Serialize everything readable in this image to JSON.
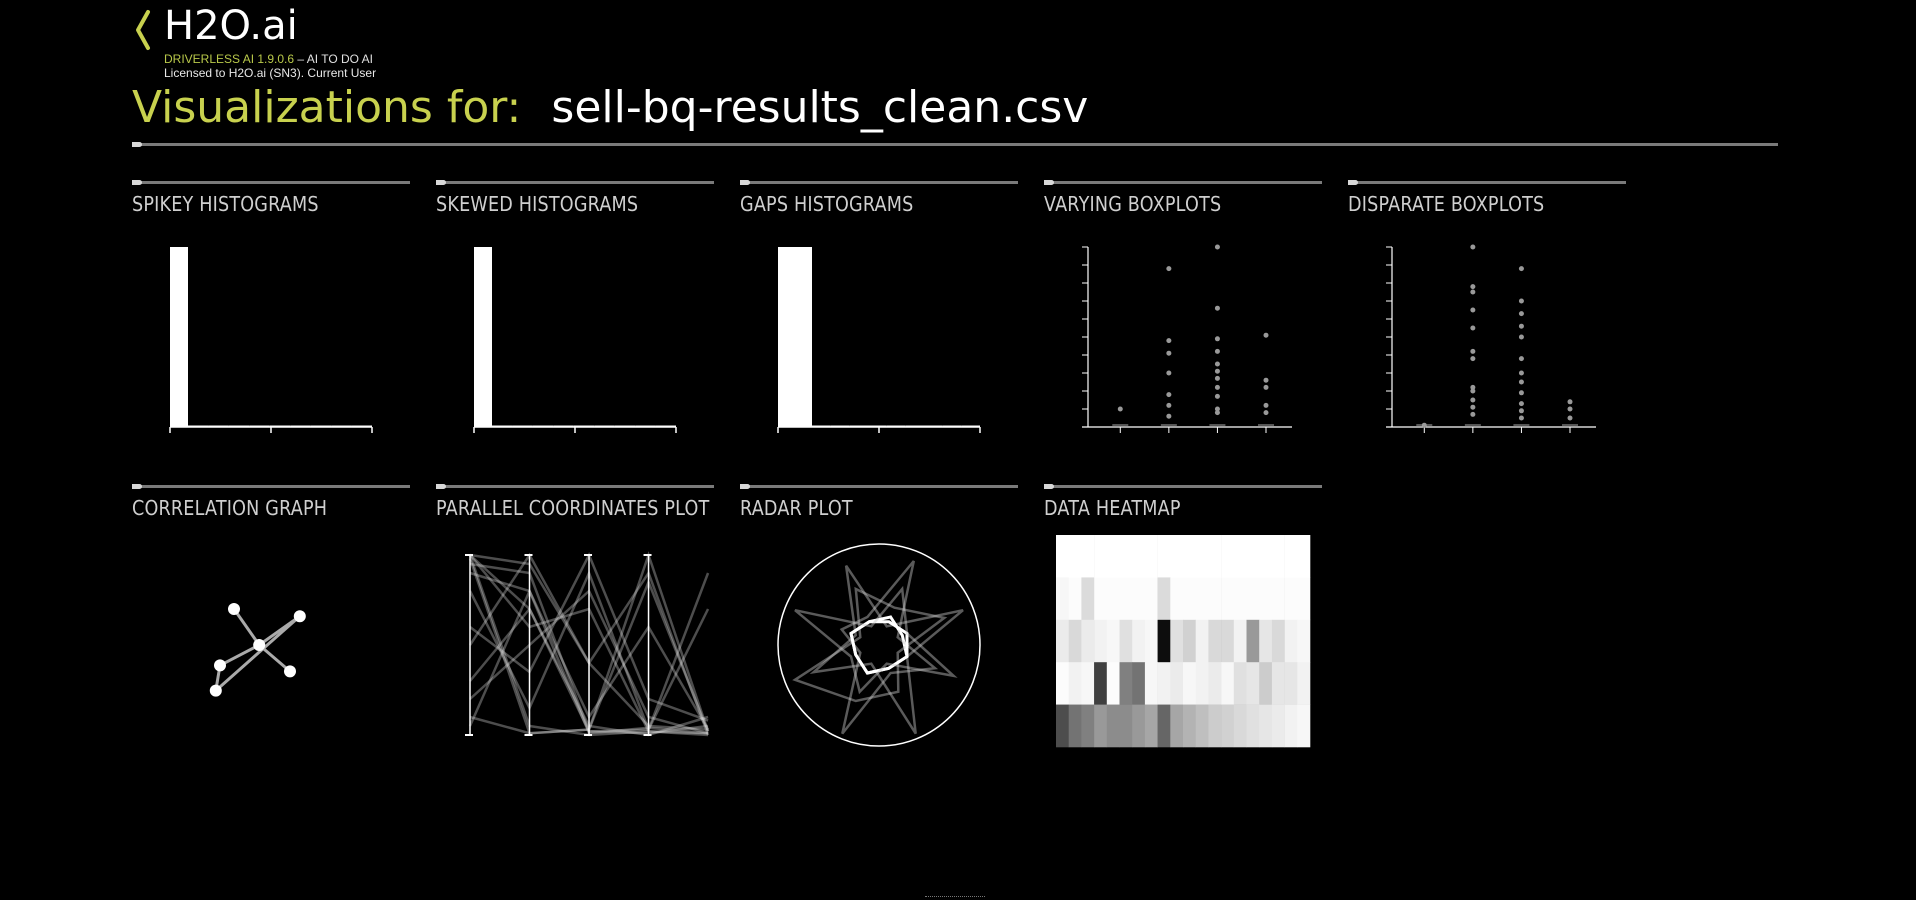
{
  "header": {
    "brand": "H2O.ai",
    "version_label": "DRIVERLESS AI 1.9.0.6",
    "tagline": "– AI TO DO AI",
    "license": "Licensed to H2O.ai (SN3). Current User",
    "visualizations_label": "Visualizations for:",
    "dataset_name": "sell-bq-results_clean.csv"
  },
  "colors": {
    "accent": "#c8d14e",
    "background": "#000000",
    "rule": "#7a7a7a"
  },
  "icons": {
    "back": "chevron-left-icon"
  },
  "cards": [
    {
      "id": "spikey",
      "title": "SPIKEY HISTOGRAMS"
    },
    {
      "id": "skewed",
      "title": "SKEWED HISTOGRAMS"
    },
    {
      "id": "gaps",
      "title": "GAPS HISTOGRAMS"
    },
    {
      "id": "varying",
      "title": "VARYING BOXPLOTS"
    },
    {
      "id": "disparate",
      "title": "DISPARATE BOXPLOTS"
    },
    {
      "id": "correlation",
      "title": "CORRELATION GRAPH"
    },
    {
      "id": "parallel",
      "title": "PARALLEL COORDINATES PLOT"
    },
    {
      "id": "radar",
      "title": "RADAR PLOT"
    },
    {
      "id": "heatmap",
      "title": "DATA HEATMAP"
    }
  ],
  "chart_data": [
    {
      "type": "bar",
      "name": "spikey",
      "values": [
        100,
        0.6,
        0.5,
        0.4,
        0.4,
        0.3,
        0.3,
        0.3,
        0.2,
        0.2
      ]
    },
    {
      "type": "bar",
      "name": "skewed",
      "values": [
        100,
        0.7,
        0.6,
        0.5,
        0.5,
        0.4,
        0.4,
        0.3,
        0.3,
        0.3
      ]
    },
    {
      "type": "bar",
      "name": "gaps",
      "values": [
        100,
        0.7,
        0.6,
        0.5,
        0.5,
        0.4,
        0.4,
        0.3,
        0.3,
        0.3
      ]
    },
    {
      "type": "scatter",
      "name": "varying",
      "groups": [
        {
          "x": 1,
          "points": [
            0.1
          ]
        },
        {
          "x": 2,
          "points": [
            0.88,
            0.48,
            0.41,
            0.3,
            0.18,
            0.12,
            0.06
          ]
        },
        {
          "x": 3,
          "points": [
            1.0,
            0.66,
            0.49,
            0.42,
            0.35,
            0.31,
            0.27,
            0.22,
            0.17,
            0.1,
            0.08
          ]
        },
        {
          "x": 4,
          "points": [
            0.51,
            0.26,
            0.22,
            0.12,
            0.08
          ]
        }
      ],
      "ylim": [
        0,
        1
      ]
    },
    {
      "type": "scatter",
      "name": "disparate",
      "groups": [
        {
          "x": 1,
          "points": [
            0.01
          ]
        },
        {
          "x": 2,
          "points": [
            1.0,
            0.78,
            0.75,
            0.65,
            0.55,
            0.42,
            0.38,
            0.22,
            0.2,
            0.15,
            0.11,
            0.07
          ]
        },
        {
          "x": 3,
          "points": [
            0.88,
            0.7,
            0.63,
            0.56,
            0.5,
            0.38,
            0.3,
            0.25,
            0.19,
            0.13,
            0.09,
            0.05
          ]
        },
        {
          "x": 4,
          "points": [
            0.14,
            0.1,
            0.05
          ]
        }
      ],
      "ylim": [
        0,
        1
      ]
    },
    {
      "type": "graph",
      "name": "correlation",
      "nodes": [
        {
          "id": 0,
          "x": 0.3,
          "y": 0.2
        },
        {
          "id": 1,
          "x": 0.77,
          "y": 0.26
        },
        {
          "id": 2,
          "x": 0.48,
          "y": 0.5
        },
        {
          "id": 3,
          "x": 0.2,
          "y": 0.67
        },
        {
          "id": 4,
          "x": 0.7,
          "y": 0.72
        },
        {
          "id": 5,
          "x": 0.17,
          "y": 0.88
        }
      ],
      "edges": [
        [
          0,
          2
        ],
        [
          2,
          1
        ],
        [
          2,
          3
        ],
        [
          2,
          4
        ],
        [
          3,
          5
        ],
        [
          5,
          1
        ]
      ]
    },
    {
      "type": "parallel",
      "name": "parallel",
      "axes": 5,
      "lines": [
        [
          0.0,
          0.3,
          0.95,
          1.0,
          0.9
        ],
        [
          0.0,
          0.95,
          1.0,
          0.98,
          1.0
        ],
        [
          0.05,
          0.1,
          0.98,
          0.99,
          0.95
        ],
        [
          0.5,
          0.0,
          0.6,
          0.95,
          0.97
        ],
        [
          0.8,
          0.5,
          0.2,
          0.9,
          0.99
        ],
        [
          0.95,
          0.2,
          0.9,
          0.4,
          0.97
        ],
        [
          0.2,
          0.85,
          0.1,
          0.97,
          0.3
        ],
        [
          0.0,
          0.05,
          0.6,
          0.1,
          1.0
        ],
        [
          0.9,
          0.99,
          0.97,
          0.15,
          0.98
        ],
        [
          0.4,
          0.65,
          0.0,
          0.8,
          0.92
        ],
        [
          0.1,
          0.2,
          0.99,
          0.96,
          0.99
        ],
        [
          0.02,
          0.99,
          0.97,
          0.0,
          0.98
        ],
        [
          0.7,
          0.3,
          0.98,
          0.97,
          0.1
        ],
        [
          0.0,
          0.4,
          0.3,
          0.98,
          0.99
        ]
      ]
    },
    {
      "type": "radar",
      "name": "radar",
      "spokes": 8,
      "series": [
        [
          0.2,
          0.9,
          0.3,
          0.95,
          0.2,
          0.7,
          0.25,
          0.85
        ],
        [
          0.3,
          0.25,
          0.3,
          0.25,
          0.3,
          0.25,
          0.3,
          0.25
        ],
        [
          0.9,
          0.2,
          0.6,
          0.3,
          0.95,
          0.2,
          0.4,
          0.3
        ],
        [
          0.4,
          0.7,
          0.2,
          0.5,
          0.6,
          0.9,
          0.2,
          0.6
        ],
        [
          0.25,
          0.3,
          0.3,
          0.25,
          0.3,
          0.25,
          0.3,
          0.25
        ],
        [
          0.6,
          0.3,
          0.8,
          0.2,
          0.5,
          0.3,
          0.9,
          0.2
        ]
      ]
    },
    {
      "type": "heatmap",
      "name": "heatmap",
      "rows": [
        [
          1,
          1,
          1,
          1,
          1,
          1,
          1,
          1,
          1,
          1,
          1,
          1,
          1,
          1,
          1,
          1,
          1,
          1,
          1,
          1
        ],
        [
          0.97,
          0.99,
          0.86,
          0.99,
          0.99,
          0.99,
          0.99,
          0.99,
          0.86,
          0.99,
          0.99,
          0.99,
          0.99,
          0.99,
          0.99,
          0.99,
          0.99,
          0.99,
          0.99,
          0.99
        ],
        [
          0.92,
          0.85,
          0.92,
          0.95,
          0.97,
          0.88,
          0.95,
          0.97,
          0.05,
          0.88,
          0.82,
          0.95,
          0.85,
          0.85,
          0.95,
          0.6,
          0.9,
          0.85,
          0.95,
          0.97
        ],
        [
          0.99,
          0.95,
          0.97,
          0.25,
          0.99,
          0.5,
          0.45,
          0.97,
          0.95,
          0.92,
          0.97,
          0.95,
          0.92,
          0.97,
          0.88,
          0.9,
          0.8,
          0.9,
          0.9,
          0.95
        ],
        [
          0.3,
          0.45,
          0.5,
          0.6,
          0.55,
          0.55,
          0.6,
          0.65,
          0.4,
          0.65,
          0.7,
          0.75,
          0.8,
          0.82,
          0.85,
          0.88,
          0.9,
          0.92,
          0.95,
          0.97
        ]
      ]
    }
  ]
}
